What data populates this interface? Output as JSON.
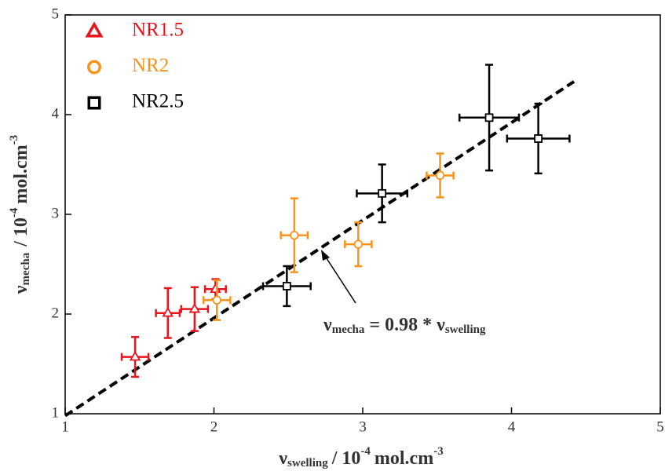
{
  "chart_data": {
    "type": "scatter",
    "x_label": {
      "symbol": "ν",
      "subscript": "swelling",
      "unit": "/ 10",
      "exp1": "-4",
      "unit2": "mol.cm",
      "exp2": "-3"
    },
    "y_label": {
      "symbol": "ν",
      "subscript": "mecha",
      "unit": "/ 10",
      "exp1": "-4",
      "unit2": "mol.cm",
      "exp2": "-3"
    },
    "xlim": [
      1,
      5
    ],
    "ylim": [
      1,
      5
    ],
    "xticks": [
      1,
      2,
      3,
      4,
      5
    ],
    "yticks": [
      1,
      2,
      3,
      4,
      5
    ],
    "legend": "top-left",
    "series": [
      {
        "name": "NR1.5",
        "marker": "triangle",
        "color": "#e8141c",
        "x": [
          1.47,
          1.69,
          1.87,
          2.01
        ],
        "values": [
          1.57,
          2.01,
          2.05,
          2.25
        ],
        "xerr": [
          0.09,
          0.08,
          0.09,
          0.07
        ],
        "yerr": [
          0.2,
          0.25,
          0.22,
          0.1
        ]
      },
      {
        "name": "NR2",
        "marker": "circle",
        "color": "#f7941d",
        "x": [
          2.02,
          2.54,
          2.97,
          3.52
        ],
        "values": [
          2.14,
          2.79,
          2.7,
          3.39
        ],
        "xerr": [
          0.09,
          0.09,
          0.09,
          0.09
        ],
        "yerr": [
          0.2,
          0.37,
          0.22,
          0.22
        ]
      },
      {
        "name": "NR2.5",
        "marker": "square",
        "color": "#000000",
        "x": [
          2.49,
          3.13,
          3.85,
          4.18
        ],
        "values": [
          2.28,
          3.21,
          3.97,
          3.76
        ],
        "xerr": [
          0.16,
          0.17,
          0.2,
          0.21
        ],
        "yerr": [
          0.2,
          0.29,
          0.53,
          0.35
        ]
      }
    ],
    "fit": {
      "slope": 0.98,
      "x": [
        1,
        4.42
      ]
    },
    "annotation": {
      "lhs": "ν",
      "lhs_sub": "mecha",
      "eq": "=",
      "op": "*",
      "rhs": "ν",
      "rhs_sub": "swelling"
    }
  }
}
